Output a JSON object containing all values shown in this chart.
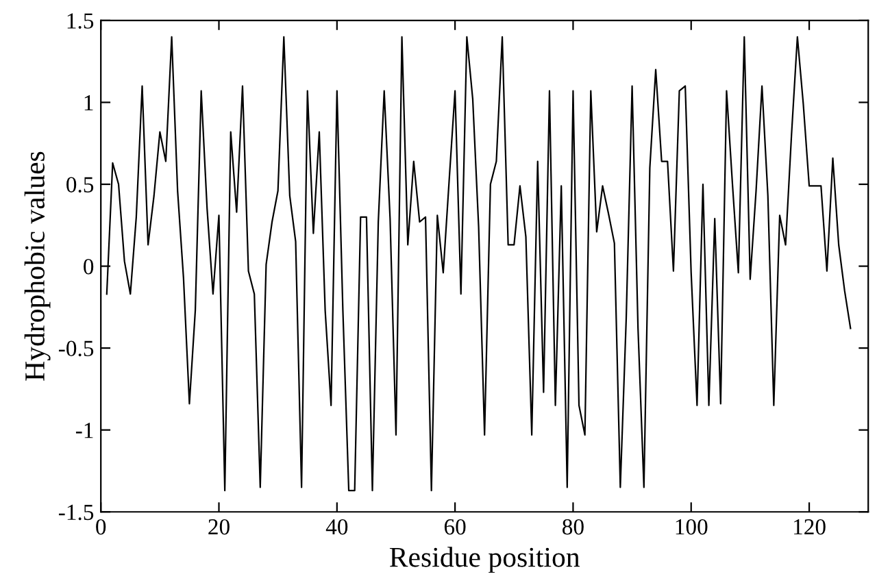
{
  "chart_data": {
    "type": "line",
    "xlabel": "Residue position",
    "ylabel": "Hydrophobic values",
    "x": [
      1,
      2,
      3,
      4,
      5,
      6,
      7,
      8,
      9,
      10,
      11,
      12,
      13,
      14,
      15,
      16,
      17,
      18,
      19,
      20,
      21,
      22,
      23,
      24,
      25,
      26,
      27,
      28,
      29,
      30,
      31,
      32,
      33,
      34,
      35,
      36,
      37,
      38,
      39,
      40,
      41,
      42,
      43,
      44,
      45,
      46,
      47,
      48,
      49,
      50,
      51,
      52,
      53,
      54,
      55,
      56,
      57,
      58,
      59,
      60,
      61,
      62,
      63,
      64,
      65,
      66,
      67,
      68,
      69,
      70,
      71,
      72,
      73,
      74,
      75,
      76,
      77,
      78,
      79,
      80,
      81,
      82,
      83,
      84,
      85,
      86,
      87,
      88,
      89,
      90,
      91,
      92,
      93,
      94,
      95,
      96,
      97,
      98,
      99,
      100,
      101,
      102,
      103,
      104,
      105,
      106,
      107,
      108,
      109,
      110,
      111,
      112,
      113,
      114,
      115,
      116,
      117,
      118,
      119,
      120,
      121,
      122,
      123,
      124,
      125,
      126,
      127
    ],
    "series": [
      {
        "color": "#000000",
        "values": [
          -0.17,
          0.63,
          0.5,
          0.03,
          -0.17,
          0.3,
          1.1,
          0.13,
          0.43,
          0.82,
          0.64,
          1.4,
          0.46,
          -0.07,
          -0.84,
          -0.27,
          1.07,
          0.35,
          -0.17,
          0.31,
          -1.37,
          0.82,
          0.33,
          1.1,
          -0.03,
          -0.17,
          -1.35,
          0.01,
          0.27,
          0.46,
          1.4,
          0.43,
          0.15,
          -1.35,
          1.07,
          0.2,
          0.82,
          -0.27,
          -0.85,
          1.07,
          -0.27,
          -1.37,
          -1.37,
          0.3,
          0.3,
          -1.37,
          0.27,
          1.07,
          0.29,
          -1.03,
          1.4,
          0.13,
          0.64,
          0.27,
          0.3,
          -1.37,
          0.31,
          -0.04,
          0.52,
          1.07,
          -0.17,
          1.4,
          1.02,
          0.24,
          -1.03,
          0.5,
          0.64,
          1.4,
          0.13,
          0.13,
          0.49,
          0.18,
          -1.03,
          0.64,
          -0.77,
          1.07,
          -0.85,
          0.49,
          -1.35,
          1.07,
          -0.85,
          -1.03,
          1.07,
          0.21,
          0.49,
          0.32,
          0.14,
          -1.35,
          -0.32,
          1.1,
          -0.38,
          -1.35,
          0.6,
          1.2,
          0.64,
          0.64,
          -0.03,
          1.07,
          1.1,
          -0.04,
          -0.85,
          0.5,
          -0.85,
          0.29,
          -0.84,
          1.07,
          0.5,
          -0.04,
          1.4,
          -0.08,
          0.46,
          1.1,
          0.43,
          -0.85,
          0.31,
          0.13,
          0.8,
          1.4,
          0.99,
          0.49,
          0.49,
          0.49,
          -0.03,
          0.66,
          0.13,
          -0.15,
          -0.38
        ]
      }
    ],
    "xlim": [
      0,
      130
    ],
    "ylim": [
      -1.5,
      1.5
    ],
    "xticks": [
      0,
      20,
      40,
      60,
      80,
      100,
      120
    ],
    "yticks": [
      -1.5,
      -1,
      -0.5,
      0,
      0.5,
      1,
      1.5
    ],
    "grid": false,
    "marker": "none",
    "line_style": "solid"
  }
}
